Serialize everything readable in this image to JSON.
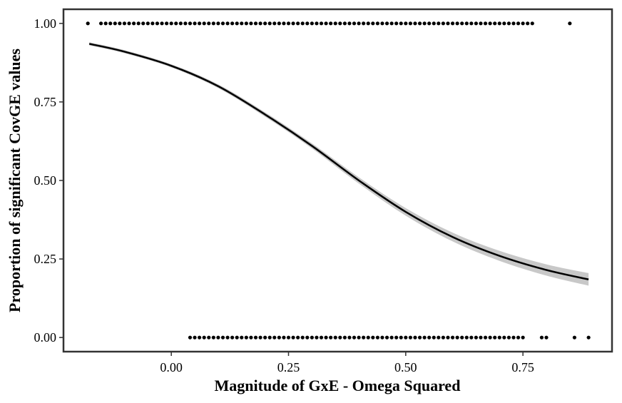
{
  "chart_data": {
    "type": "scatter",
    "xlabel": "Magnitude of GxE - Omega Squared",
    "ylabel": "Proportion of significant CovGE values",
    "xlim": [
      -0.23,
      0.94
    ],
    "ylim": [
      -0.045,
      1.045
    ],
    "x_ticks": [
      0.0,
      0.25,
      0.5,
      0.75
    ],
    "x_tick_labels": [
      "0.00",
      "0.25",
      "0.50",
      "0.75"
    ],
    "y_ticks": [
      0.0,
      0.25,
      0.5,
      0.75,
      1.0
    ],
    "y_tick_labels": [
      "0.00",
      "0.25",
      "0.50",
      "0.75",
      "1.00"
    ],
    "grid": false,
    "points_y1": {
      "isolated_x": [
        -0.178,
        0.85
      ],
      "dense_range": [
        -0.15,
        0.77
      ],
      "dense_step": 0.01
    },
    "points_y0": {
      "isolated_x": [
        0.79,
        0.8,
        0.86,
        0.89
      ],
      "dense_range": [
        0.04,
        0.75
      ],
      "dense_step": 0.01
    },
    "fit_line": {
      "x": [
        -0.175,
        -0.1,
        0.0,
        0.1,
        0.2,
        0.3,
        0.4,
        0.5,
        0.6,
        0.7,
        0.8,
        0.89
      ],
      "y": [
        0.935,
        0.91,
        0.865,
        0.8,
        0.71,
        0.61,
        0.5,
        0.4,
        0.32,
        0.26,
        0.215,
        0.185
      ],
      "ci_halfwidth": [
        0.005,
        0.005,
        0.005,
        0.006,
        0.007,
        0.008,
        0.01,
        0.012,
        0.014,
        0.016,
        0.018,
        0.02
      ]
    },
    "colors": {
      "points": "#000000",
      "line": "#000000",
      "ribbon": "#c8c8c8",
      "frame": "#333333"
    }
  }
}
